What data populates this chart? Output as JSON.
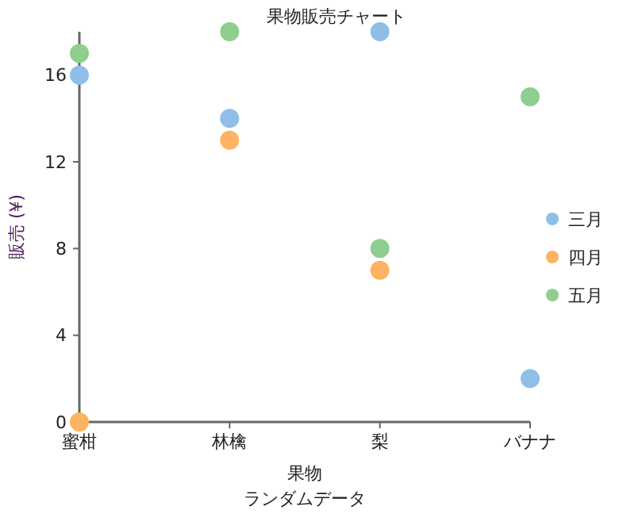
{
  "chart_data": {
    "type": "scatter",
    "title": "果物販売チャート",
    "xlabel": "果物",
    "ylabel": "販売 (¥)",
    "annotations": [
      "ランダムデータ"
    ],
    "categories": [
      "蜜柑",
      "林檎",
      "梨",
      "バナナ"
    ],
    "series": [
      {
        "name": "三月",
        "color": "#8fbfe8",
        "values": [
          16,
          14,
          18,
          2
        ]
      },
      {
        "name": "四月",
        "color": "#fdb35f",
        "values": [
          0,
          13,
          7,
          null
        ]
      },
      {
        "name": "五月",
        "color": "#90cd90",
        "values": [
          17,
          18,
          8,
          15
        ]
      }
    ],
    "ylim": [
      0,
      18
    ],
    "yticks": [
      0,
      4,
      8,
      12,
      16
    ],
    "legend": "right",
    "marker": "circle",
    "grid": false
  }
}
